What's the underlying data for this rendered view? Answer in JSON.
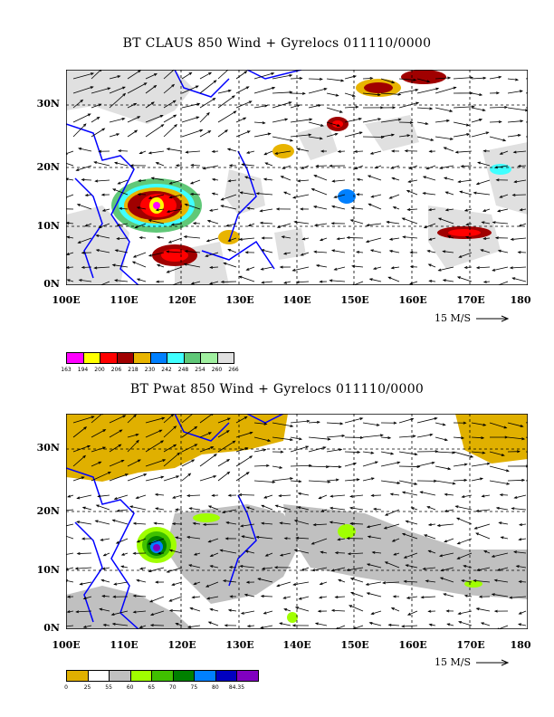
{
  "map1": {
    "title": "BT CLAUS 850 Wind + Gyrelocs 011110/0000",
    "y_ticks": [
      "30N",
      "20N",
      "10N",
      "0N"
    ],
    "x_ticks": [
      "100E",
      "110E",
      "120E",
      "130E",
      "140E",
      "150E",
      "160E",
      "170E",
      "180"
    ],
    "ref_vector": "15 M/S",
    "colorbar": {
      "colors": [
        "#ff00ff",
        "#ffff00",
        "#ff0000",
        "#a00000",
        "#e8b400",
        "#0080ff",
        "#40ffff",
        "#60c878",
        "#a0f0a0",
        "#e0e0e0"
      ],
      "labels": [
        "163",
        "194",
        "200",
        "206",
        "218",
        "230",
        "242",
        "248",
        "254",
        "260",
        "266"
      ]
    }
  },
  "map2": {
    "title": "BT Pwat 850 Wind + Gyrelocs 011110/0000",
    "y_ticks": [
      "30N",
      "20N",
      "10N",
      "0N"
    ],
    "x_ticks": [
      "100E",
      "110E",
      "120E",
      "130E",
      "140E",
      "150E",
      "160E",
      "170E",
      "180"
    ],
    "ref_vector": "15 M/S",
    "colorbar": {
      "colors": [
        "#e0b000",
        "#ffffff",
        "#c0c0c0",
        "#a0ff00",
        "#40c000",
        "#008000",
        "#0080ff",
        "#0000c0",
        "#8000c0"
      ],
      "labels": [
        "0",
        "25",
        "55",
        "60",
        "65",
        "70",
        "75",
        "80",
        "84.35"
      ]
    }
  },
  "colors": {
    "coast": "#0000ff",
    "grid": "#000000",
    "vector": "#000000"
  }
}
